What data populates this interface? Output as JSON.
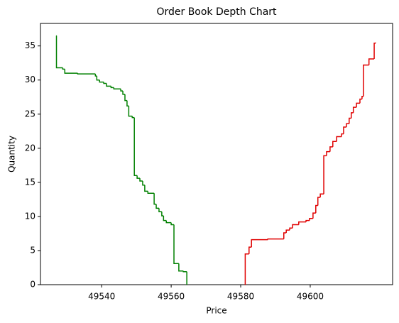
{
  "chart_data": {
    "type": "step",
    "title": "Order Book Depth Chart",
    "x_label": "Price",
    "y_label": "Quantity",
    "xlim": [
      49522.4,
      49623.7
    ],
    "ylim": [
      0,
      38.3
    ],
    "xticks": [
      49540,
      49560,
      49580,
      49600
    ],
    "yticks": [
      0,
      5,
      10,
      15,
      20,
      25,
      30,
      35
    ],
    "series": [
      {
        "color": "#008000",
        "x": [
          49526.9,
          49527.0,
          49528.8,
          49529.4,
          49533.1,
          49538.2,
          49538.6,
          49539.4,
          49540.6,
          49541.4,
          49542.7,
          49543.5,
          49545.5,
          49546.1,
          49546.7,
          49547.3,
          49547.8,
          49548.8,
          49549.4,
          49550.2,
          49551.0,
          49551.8,
          49552.4,
          49553.3,
          49555.1,
          49555.7,
          49556.5,
          49557.3,
          49557.8,
          49558.6,
          49560.0,
          49560.8,
          49562.2,
          49563.5,
          49564.5
        ],
        "values": [
          36.5,
          31.8,
          31.6,
          31.0,
          30.9,
          30.6,
          30.0,
          29.7,
          29.5,
          29.1,
          28.9,
          28.7,
          28.4,
          27.9,
          27.0,
          26.2,
          24.7,
          24.5,
          16.0,
          15.6,
          15.2,
          14.6,
          13.7,
          13.4,
          11.8,
          11.2,
          10.7,
          10.1,
          9.4,
          9.1,
          8.8,
          3.1,
          2.0,
          1.9,
          0
        ]
      },
      {
        "color": "#e00000",
        "x": [
          49581.2,
          49581.3,
          49582.4,
          49583.1,
          49587.8,
          49592.4,
          49593.1,
          49594.1,
          49594.9,
          49596.7,
          49598.8,
          49599.8,
          49600.8,
          49601.6,
          49602.2,
          49602.9,
          49603.9,
          49604.7,
          49605.7,
          49606.5,
          49607.6,
          49609.0,
          49609.6,
          49610.4,
          49611.2,
          49611.8,
          49612.4,
          49613.3,
          49614.3,
          49614.9,
          49615.3,
          49616.9,
          49618.4,
          49618.8
        ],
        "values": [
          0,
          4.5,
          5.5,
          6.6,
          6.7,
          7.6,
          8.0,
          8.3,
          8.8,
          9.2,
          9.4,
          9.7,
          10.5,
          11.6,
          12.8,
          13.3,
          18.9,
          19.5,
          20.2,
          21.0,
          21.7,
          22.1,
          23.1,
          23.6,
          24.4,
          25.2,
          26.0,
          26.6,
          27.2,
          27.6,
          32.2,
          33.1,
          35.4,
          35.5
        ]
      }
    ]
  }
}
